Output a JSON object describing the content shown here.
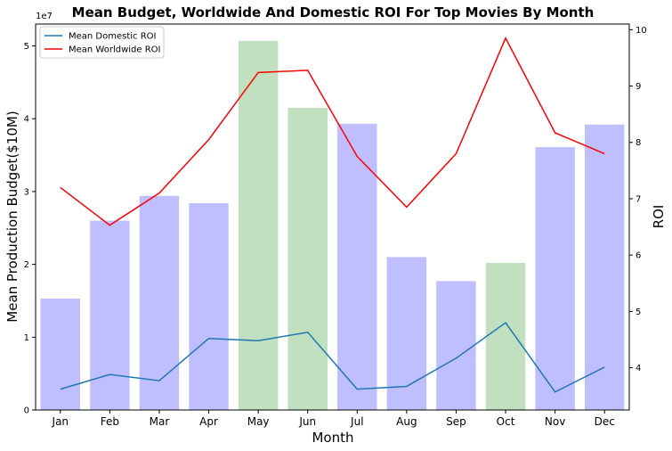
{
  "chart_data": {
    "type": "bar",
    "title": "Mean Budget, Worldwide And Domestic ROI For Top Movies By Month",
    "xlabel": "Month",
    "ylabel": "Mean Production Budget($10M)",
    "y2label": "ROI",
    "y_offset_label": "1e7",
    "categories": [
      "Jan",
      "Feb",
      "Mar",
      "Apr",
      "May",
      "Jun",
      "Jul",
      "Aug",
      "Sep",
      "Oct",
      "Nov",
      "Dec"
    ],
    "ylim": [
      0,
      53000000
    ],
    "y2lim": [
      3.25,
      10.1
    ],
    "yticks": [
      0,
      10000000,
      20000000,
      30000000,
      40000000,
      50000000
    ],
    "yticklabels": [
      "0",
      "1",
      "2",
      "3",
      "4",
      "5"
    ],
    "y2ticks": [
      4,
      5,
      6,
      7,
      8,
      9,
      10
    ],
    "y2ticklabels": [
      "4",
      "5",
      "6",
      "7",
      "8",
      "9",
      "10"
    ],
    "bars": {
      "values": [
        15300000,
        26000000,
        29400000,
        28400000,
        50700000,
        41500000,
        39300000,
        21000000,
        17700000,
        20200000,
        36100000,
        39200000
      ],
      "highlight": [
        false,
        false,
        false,
        false,
        true,
        true,
        false,
        false,
        false,
        true,
        false,
        false
      ],
      "color": "#bfbfff",
      "highlight_color": "#c0e0c0"
    },
    "series": [
      {
        "name": "Mean Domestic ROI",
        "axis": "right",
        "color": "#1f77b4",
        "values": [
          3.62,
          3.88,
          3.77,
          4.52,
          4.48,
          4.63,
          3.62,
          3.67,
          4.17,
          4.8,
          3.57,
          4.01
        ]
      },
      {
        "name": "Mean Worldwide ROI",
        "axis": "right",
        "color": "#ff0000",
        "values": [
          7.2,
          6.53,
          7.1,
          8.05,
          9.24,
          9.28,
          7.75,
          6.85,
          7.8,
          9.85,
          8.17,
          7.8
        ]
      }
    ],
    "grid": false,
    "legend_position": "top-left"
  }
}
